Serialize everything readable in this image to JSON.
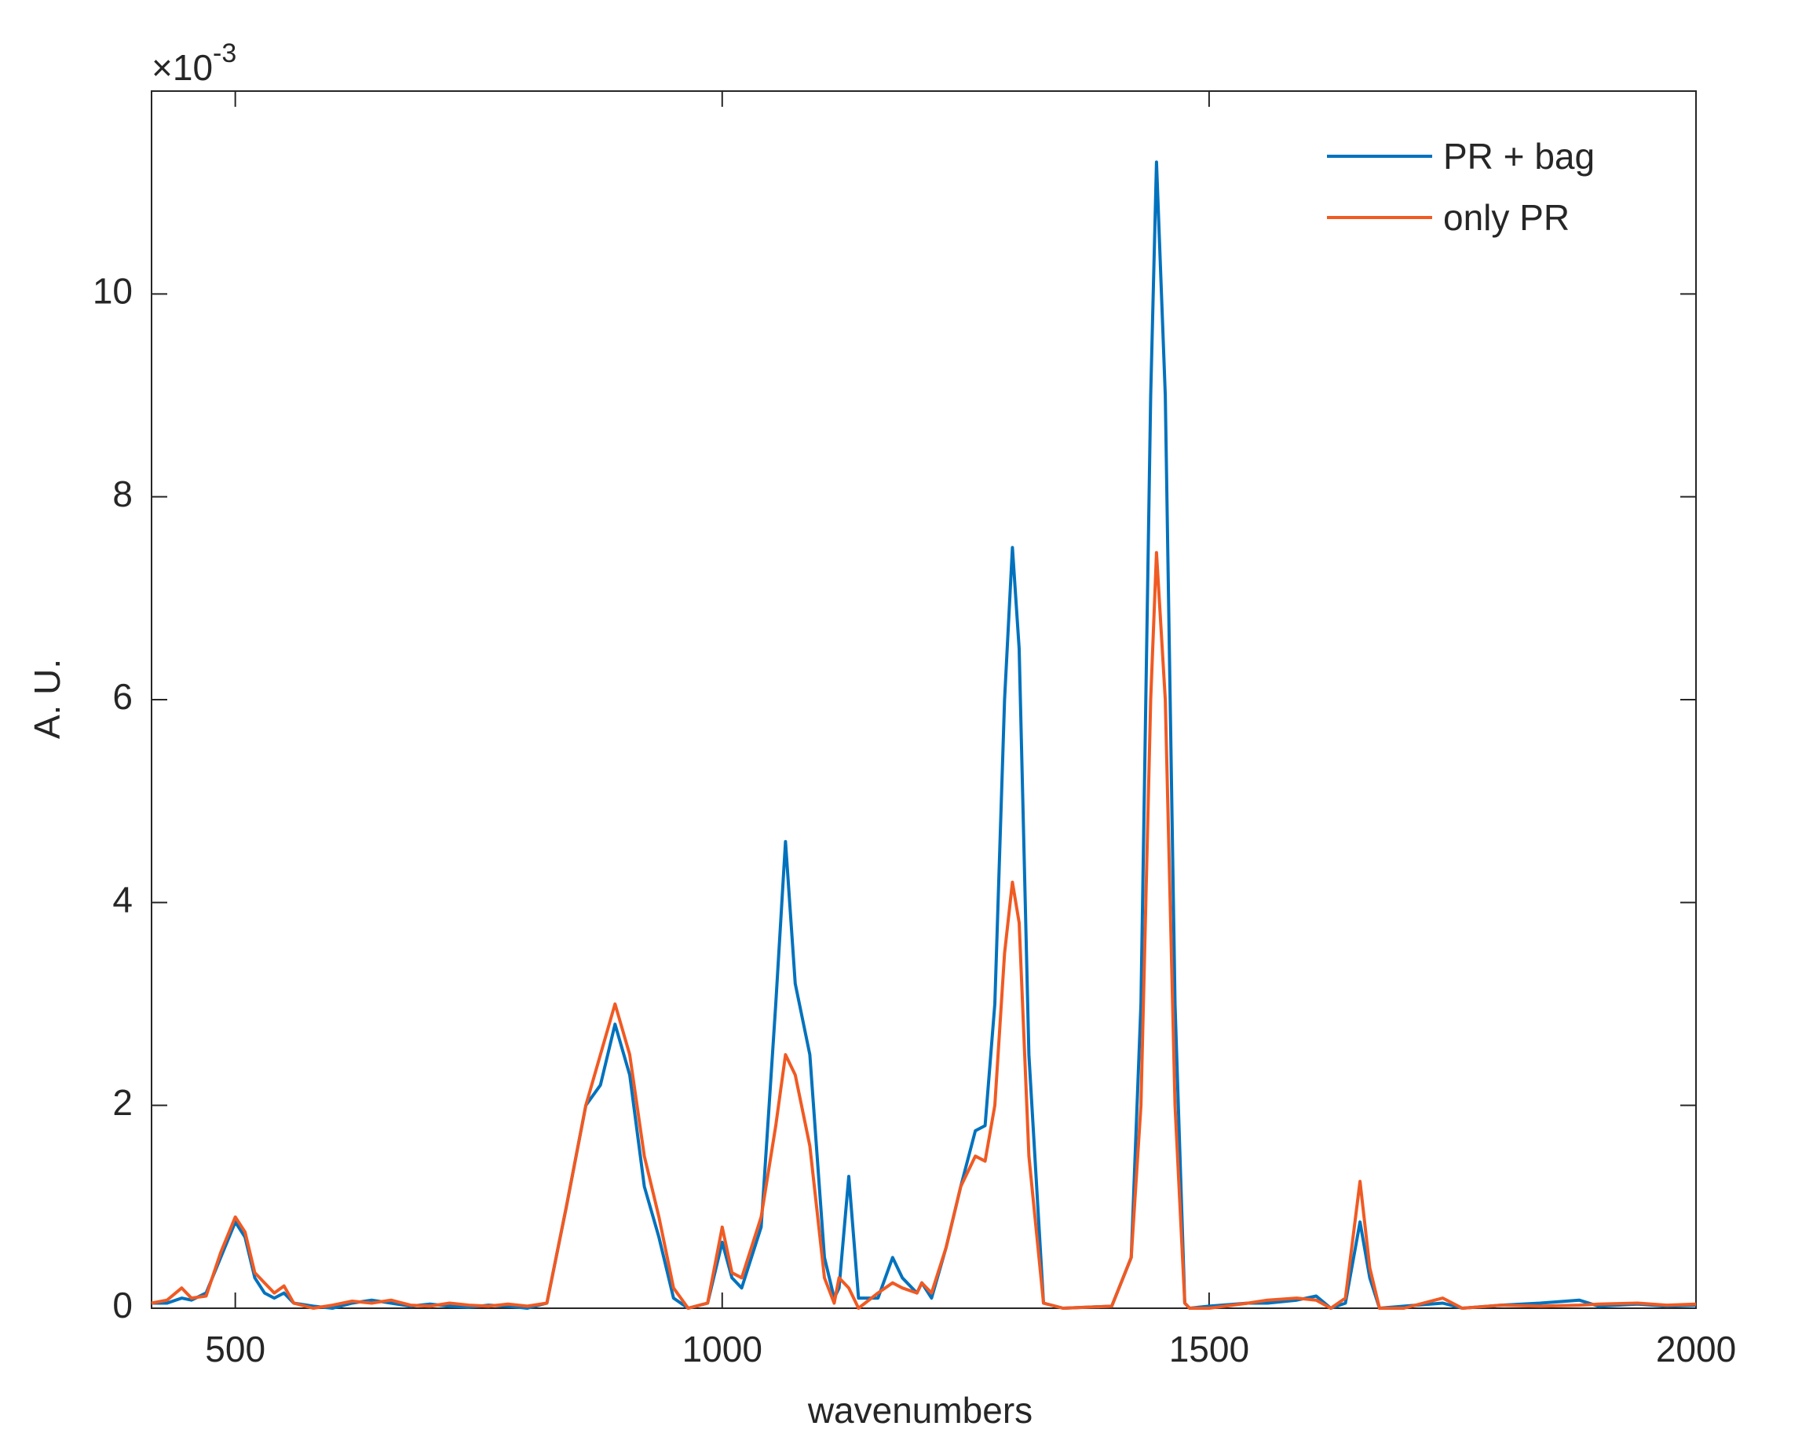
{
  "chart_data": {
    "type": "line",
    "xlabel": "wavenumbers",
    "ylabel": "A. U.",
    "y_multiplier": {
      "base": "×10",
      "exponent": "-3"
    },
    "x": [
      414,
      430,
      445,
      455,
      470,
      485,
      500,
      510,
      520,
      530,
      540,
      550,
      560,
      580,
      600,
      620,
      640,
      660,
      680,
      700,
      720,
      740,
      760,
      780,
      800,
      820,
      840,
      860,
      875,
      890,
      905,
      920,
      935,
      950,
      965,
      985,
      1000,
      1010,
      1020,
      1040,
      1055,
      1065,
      1075,
      1090,
      1105,
      1115,
      1120,
      1130,
      1140,
      1160,
      1175,
      1185,
      1200,
      1205,
      1215,
      1230,
      1245,
      1260,
      1270,
      1280,
      1290,
      1298,
      1305,
      1315,
      1330,
      1350,
      1400,
      1420,
      1430,
      1440,
      1446,
      1455,
      1465,
      1475,
      1480,
      1500,
      1540,
      1560,
      1590,
      1610,
      1625,
      1640,
      1655,
      1665,
      1675,
      1700,
      1740,
      1760,
      1800,
      1840,
      1880,
      1900,
      1940,
      1970,
      2000
    ],
    "series": [
      {
        "name": "PR + bag",
        "color": "#0072bd",
        "values": [
          0.05,
          0.05,
          0.1,
          0.08,
          0.15,
          0.5,
          0.85,
          0.7,
          0.3,
          0.15,
          0.1,
          0.15,
          0.05,
          0.02,
          0.0,
          0.05,
          0.08,
          0.05,
          0.02,
          0.04,
          0.02,
          0.01,
          0.03,
          0.02,
          0.0,
          0.05,
          1.0,
          2.0,
          2.2,
          2.8,
          2.3,
          1.2,
          0.7,
          0.1,
          0.0,
          0.05,
          0.65,
          0.3,
          0.2,
          0.8,
          3.0,
          4.6,
          3.2,
          2.5,
          0.5,
          0.1,
          0.2,
          1.3,
          0.1,
          0.1,
          0.5,
          0.3,
          0.15,
          0.25,
          0.1,
          0.6,
          1.2,
          1.75,
          1.8,
          3.0,
          6.0,
          7.5,
          6.5,
          2.5,
          0.05,
          0.0,
          0.02,
          0.5,
          3.0,
          9.0,
          11.3,
          9.0,
          3.0,
          0.05,
          0.0,
          0.02,
          0.05,
          0.05,
          0.08,
          0.12,
          0.0,
          0.05,
          0.85,
          0.3,
          0.0,
          0.02,
          0.05,
          0.0,
          0.03,
          0.05,
          0.08,
          0.02,
          0.04,
          0.02,
          0.03
        ]
      },
      {
        "name": "only PR",
        "color": "#f05a23",
        "values": [
          0.05,
          0.08,
          0.2,
          0.1,
          0.12,
          0.55,
          0.9,
          0.75,
          0.35,
          0.25,
          0.15,
          0.22,
          0.05,
          0.0,
          0.03,
          0.07,
          0.05,
          0.08,
          0.03,
          0.02,
          0.05,
          0.03,
          0.02,
          0.04,
          0.02,
          0.05,
          1.0,
          2.0,
          2.5,
          3.0,
          2.5,
          1.5,
          0.9,
          0.2,
          0.0,
          0.05,
          0.8,
          0.35,
          0.3,
          0.9,
          1.8,
          2.5,
          2.3,
          1.6,
          0.3,
          0.05,
          0.3,
          0.2,
          0.0,
          0.15,
          0.25,
          0.2,
          0.15,
          0.25,
          0.15,
          0.6,
          1.2,
          1.5,
          1.45,
          2.0,
          3.5,
          4.2,
          3.8,
          1.5,
          0.05,
          0.0,
          0.02,
          0.5,
          2.0,
          6.0,
          7.45,
          6.0,
          2.0,
          0.05,
          0.0,
          0.0,
          0.05,
          0.08,
          0.1,
          0.08,
          0.0,
          0.1,
          1.25,
          0.4,
          0.0,
          0.0,
          0.1,
          0.0,
          0.03,
          0.02,
          0.03,
          0.04,
          0.05,
          0.03,
          0.04
        ]
      }
    ],
    "xlim": [
      414,
      2000
    ],
    "xticks": [
      500,
      1000,
      1500,
      2000
    ],
    "ylim": [
      0,
      12
    ],
    "yticks": [
      0,
      2,
      4,
      6,
      8,
      10
    ],
    "legend": "upper right"
  }
}
